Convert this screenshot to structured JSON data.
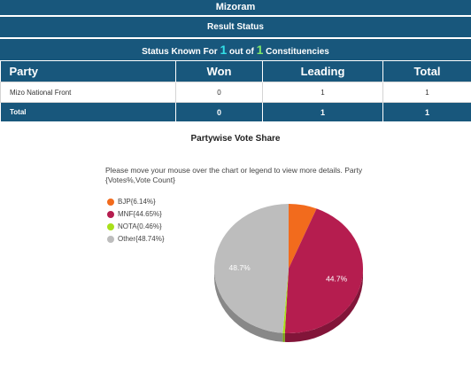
{
  "header": {
    "state": "Mizoram",
    "result_status": "Result Status",
    "status_prefix": "Status Known For",
    "status_known": "1",
    "status_mid": "out of",
    "status_total": "1",
    "status_suffix": "Constituencies"
  },
  "table": {
    "columns": [
      "Party",
      "Won",
      "Leading",
      "Total"
    ],
    "rows": [
      {
        "party": "Mizo National Front",
        "won": "0",
        "leading": "1",
        "total": "1"
      }
    ],
    "total_row": {
      "label": "Total",
      "won": "0",
      "leading": "1",
      "total": "1"
    }
  },
  "chart": {
    "title": "Partywise Vote Share",
    "hint": "Please move your mouse over the chart or legend to view more details. Party {Votes%,Vote Count}",
    "legend": [
      {
        "label": "BJP{6.14%}",
        "color": "#f26b1d"
      },
      {
        "label": "MNF{44.65%}",
        "color": "#b51d4f"
      },
      {
        "label": "NOTA{0.46%}",
        "color": "#a8e01a"
      },
      {
        "label": "Other{48.74%}",
        "color": "#bdbdbd"
      }
    ]
  },
  "chart_data": {
    "type": "pie",
    "title": "Partywise Vote Share",
    "labels": [
      "BJP",
      "MNF",
      "NOTA",
      "Other"
    ],
    "values": [
      6.14,
      44.65,
      0.46,
      48.74
    ],
    "slice_labels": [
      "",
      "44.7%",
      "",
      "48.7%"
    ],
    "colors": [
      "#f26b1d",
      "#b51d4f",
      "#a8e01a",
      "#bdbdbd"
    ]
  }
}
